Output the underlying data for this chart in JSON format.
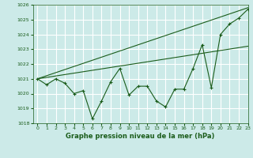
{
  "title": "Graphe pression niveau de la mer (hPa)",
  "background_color": "#cceae8",
  "grid_color": "#ffffff",
  "line_color": "#1a5c1a",
  "xlim": [
    -0.5,
    23
  ],
  "ylim": [
    1018,
    1026
  ],
  "yticks": [
    1018,
    1019,
    1020,
    1021,
    1022,
    1023,
    1024,
    1025,
    1026
  ],
  "xticks": [
    0,
    1,
    2,
    3,
    4,
    5,
    6,
    7,
    8,
    9,
    10,
    11,
    12,
    13,
    14,
    15,
    16,
    17,
    18,
    19,
    20,
    21,
    22,
    23
  ],
  "series1_x": [
    0,
    1,
    2,
    3,
    4,
    5,
    6,
    7,
    8,
    9,
    10,
    11,
    12,
    13,
    14,
    15,
    16,
    17,
    18,
    19,
    20,
    21,
    22,
    23
  ],
  "series1_y": [
    1021.0,
    1020.6,
    1021.0,
    1020.7,
    1020.0,
    1020.2,
    1018.3,
    1019.5,
    1020.8,
    1021.7,
    1019.9,
    1020.5,
    1020.5,
    1019.5,
    1019.1,
    1020.3,
    1020.3,
    1021.7,
    1023.3,
    1020.4,
    1024.0,
    1024.7,
    1025.1,
    1025.7
  ],
  "series2_x": [
    0,
    23
  ],
  "series2_y": [
    1021.0,
    1025.8
  ],
  "series3_x": [
    0,
    23
  ],
  "series3_y": [
    1021.0,
    1023.2
  ],
  "ylabel_fontsize": 4.5,
  "xlabel_fontsize": 4.5,
  "title_fontsize": 6.0,
  "tick_labelsize": 4.5
}
